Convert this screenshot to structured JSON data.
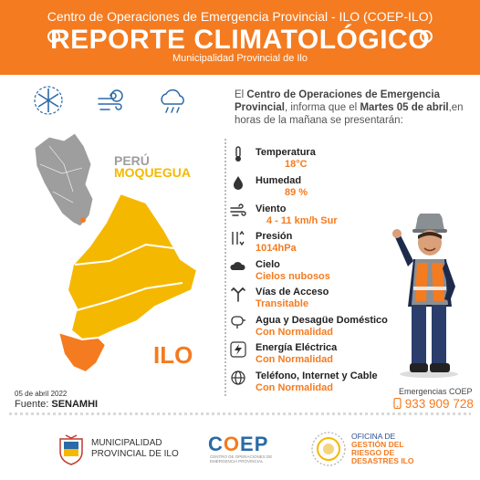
{
  "header": {
    "top_line": "Centro de Operaciones de Emergencia Provincial  - ILO (COEP-ILO)",
    "title": "REPORTE CLIMATOLÓGICO",
    "subtitle": "Municipalidad Provincial de Ilo",
    "bg_color": "#f47b20"
  },
  "weather_icons": [
    "cold-snowflake-icon",
    "wind-sun-icon",
    "cloud-rain-icon"
  ],
  "intro": {
    "p1": "El ",
    "b1": "Centro de Operaciones de Emergencia Provincial",
    "p2": ", informa que el ",
    "b2": "Martes 05 de abril",
    "p3": ",en horas de la mañana se presentarán:"
  },
  "map": {
    "label_peru": "PERÚ",
    "label_moquegua": "MOQUEGUA",
    "label_ilo": "ILO",
    "color_moquegua": "#f5b800",
    "color_ilo": "#f47b20"
  },
  "conditions": [
    {
      "name": "Temperatura",
      "value": "18°C",
      "icon": "thermometer-icon"
    },
    {
      "name": "Humedad",
      "value": "89 %",
      "icon": "water-drop-icon"
    },
    {
      "name": "Viento",
      "value": "4 - 11 km/h Sur",
      "icon": "wind-icon"
    },
    {
      "name": "Presión",
      "value": "1014hPa",
      "icon": "pressure-icon"
    },
    {
      "name": "Cielo",
      "value": "Cielos nubosos",
      "icon": "cloud-icon"
    },
    {
      "name": "Vías de Acceso",
      "value": "Transitable",
      "icon": "road-icon"
    },
    {
      "name": "Agua y Desagüe Doméstico",
      "value": "Con Normalidad",
      "icon": "faucet-icon"
    },
    {
      "name": "Energía Eléctrica",
      "value": "Con Normalidad",
      "icon": "lightning-icon"
    },
    {
      "name": "Teléfono, Internet y Cable",
      "value": "Con Normalidad",
      "icon": "globe-icon"
    }
  ],
  "footer_info": {
    "date": "05 de abril 2022",
    "source_label": "Fuente: ",
    "source_value": "SENAMHI",
    "emergency_label": "Emergencias  COEP",
    "emergency_phone": "933 909 728"
  },
  "logos": {
    "muni_line1": "MUNICIPALIDAD",
    "muni_line2": "PROVINCIAL DE ILO",
    "coep": "COEP",
    "coep_sub": "CENTRO DE OPERACIONES DE EMERGENCIA PROVINCIAL",
    "grd_line1": "OFICINA DE",
    "grd_line2": "GESTIÓN DEL",
    "grd_line3": "RIESGO DE",
    "grd_line4": "DESASTRES ILO"
  }
}
